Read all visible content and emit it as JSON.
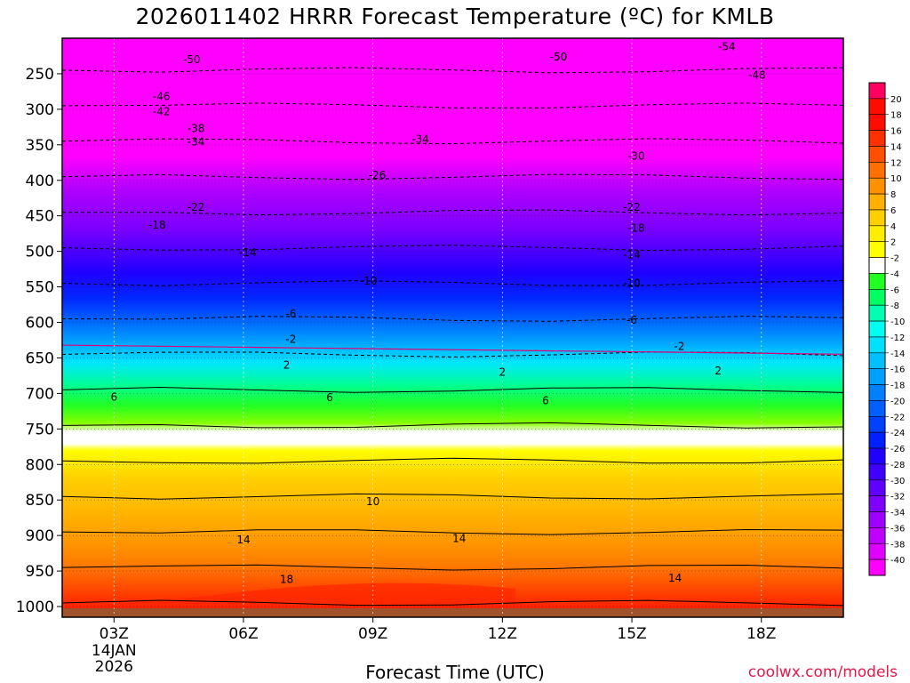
{
  "chart_data": {
    "type": "heatmap",
    "title": "2026011402 HRRR Forecast Temperature (ºC) for KMLB",
    "xlabel": "Forecast Time (UTC)",
    "ylabel": "",
    "x_ticks": [
      "03Z",
      "06Z",
      "09Z",
      "12Z",
      "15Z",
      "18Z"
    ],
    "x_tick_sub": [
      "14JAN",
      "2026"
    ],
    "x_hours": [
      3,
      6,
      9,
      12,
      15,
      18
    ],
    "xlim": [
      1.8,
      19.9
    ],
    "y_ticks": [
      250,
      300,
      350,
      400,
      450,
      500,
      550,
      600,
      650,
      700,
      750,
      800,
      850,
      900,
      950,
      1000
    ],
    "ylim": [
      200,
      1015
    ],
    "colorbar": {
      "ticks": [
        20,
        18,
        16,
        14,
        12,
        10,
        8,
        6,
        4,
        2,
        -2,
        -4,
        -6,
        -8,
        -10,
        -12,
        -14,
        -16,
        -18,
        -20,
        -22,
        -24,
        -26,
        -28,
        -30,
        -32,
        -34,
        -36,
        -38,
        -40
      ]
    },
    "profile": {
      "pressure": [
        200,
        250,
        300,
        350,
        400,
        450,
        500,
        550,
        600,
        650,
        700,
        750,
        800,
        850,
        900,
        950,
        1000
      ],
      "temperature": [
        -58,
        -49,
        -42,
        -34,
        -26,
        -20,
        -14,
        -9,
        -5,
        -1,
        5,
        9,
        11,
        13,
        14,
        17,
        19
      ]
    },
    "contour_labels": [
      {
        "text": "-54",
        "hour": 17.2,
        "p": 212
      },
      {
        "text": "-50",
        "hour": 4.8,
        "p": 230
      },
      {
        "text": "-50",
        "hour": 13.3,
        "p": 226
      },
      {
        "text": "-48",
        "hour": 17.9,
        "p": 252
      },
      {
        "text": "-46",
        "hour": 4.1,
        "p": 282
      },
      {
        "text": "-42",
        "hour": 4.1,
        "p": 303
      },
      {
        "text": "-38",
        "hour": 4.9,
        "p": 327
      },
      {
        "text": "-34",
        "hour": 4.9,
        "p": 346
      },
      {
        "text": "-34",
        "hour": 10.1,
        "p": 342
      },
      {
        "text": "-30",
        "hour": 15.1,
        "p": 366
      },
      {
        "text": "-26",
        "hour": 9.1,
        "p": 393
      },
      {
        "text": "-22",
        "hour": 4.9,
        "p": 438
      },
      {
        "text": "-22",
        "hour": 15.0,
        "p": 438
      },
      {
        "text": "-18",
        "hour": 4.0,
        "p": 463
      },
      {
        "text": "-18",
        "hour": 15.1,
        "p": 467
      },
      {
        "text": "-14",
        "hour": 6.1,
        "p": 502
      },
      {
        "text": "-14",
        "hour": 15.0,
        "p": 505
      },
      {
        "text": "-10",
        "hour": 8.9,
        "p": 542
      },
      {
        "text": "-10",
        "hour": 15.0,
        "p": 545
      },
      {
        "text": "-6",
        "hour": 7.1,
        "p": 588
      },
      {
        "text": "-6",
        "hour": 15.0,
        "p": 597
      },
      {
        "text": "-2",
        "hour": 7.1,
        "p": 624
      },
      {
        "text": "-2",
        "hour": 16.1,
        "p": 634
      },
      {
        "text": "2",
        "hour": 7.0,
        "p": 660
      },
      {
        "text": "2",
        "hour": 12.0,
        "p": 670
      },
      {
        "text": "2",
        "hour": 17.0,
        "p": 668
      },
      {
        "text": "6",
        "hour": 3.0,
        "p": 705
      },
      {
        "text": "6",
        "hour": 8.0,
        "p": 706
      },
      {
        "text": "6",
        "hour": 13.0,
        "p": 710
      },
      {
        "text": "10",
        "hour": 9.0,
        "p": 852
      },
      {
        "text": "14",
        "hour": 6.0,
        "p": 906
      },
      {
        "text": "14",
        "hour": 11.0,
        "p": 904
      },
      {
        "text": "14",
        "hour": 16.0,
        "p": 960
      },
      {
        "text": "18",
        "hour": 7.0,
        "p": 962
      }
    ]
  },
  "watermark": "coolwx.com/models",
  "colors": {
    "background": "#ffffff",
    "ground": "#a0522d",
    "watermark": "#e8174a"
  }
}
